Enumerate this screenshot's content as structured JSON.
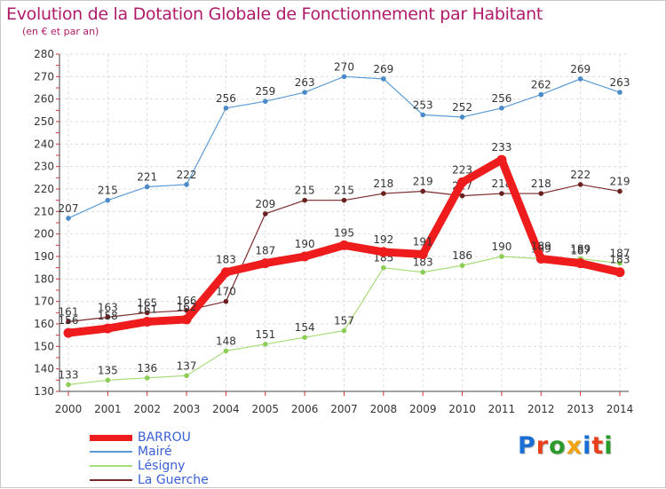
{
  "title": "Evolution de la Dotation Globale de Fonctionnement par Habitant",
  "subtitle": "(en € et par an)",
  "logo": {
    "text": "Proxiti",
    "colors": [
      "#1a6fd6",
      "#e8401c",
      "#2a9b2a",
      "#f2a20c",
      "#1a6fd6",
      "#e8401c",
      "#2a9b2a"
    ]
  },
  "chart_data": {
    "type": "line",
    "title": "Evolution de la Dotation Globale de Fonctionnement par Habitant",
    "subtitle": "(en € et par an)",
    "xlabel": "",
    "ylabel": "",
    "ylim": [
      130,
      280
    ],
    "yticks": [
      130,
      140,
      150,
      160,
      170,
      180,
      190,
      200,
      210,
      220,
      230,
      240,
      250,
      260,
      270,
      280
    ],
    "grid": true,
    "categories": [
      "2000",
      "2001",
      "2002",
      "2003",
      "2004",
      "2005",
      "2006",
      "2007",
      "2008",
      "2009",
      "2010",
      "2011",
      "2012",
      "2013",
      "2014"
    ],
    "series": [
      {
        "name": "Mairé",
        "color": "#5b9bd5",
        "width": 1.2,
        "dot": 2.8,
        "dotColor": "#4a8ac8",
        "values": [
          207,
          215,
          221,
          222,
          256,
          259,
          263,
          270,
          269,
          253,
          252,
          256,
          262,
          269,
          263
        ],
        "labels": [
          "207",
          "215",
          "221",
          "222",
          "256",
          "259",
          "263",
          "270",
          "269",
          "253",
          "252",
          "256",
          "262",
          "269",
          "263"
        ]
      },
      {
        "name": "Lésigny",
        "color": "#a8dc78",
        "width": 1.2,
        "dot": 2.8,
        "dotColor": "#8ccd55",
        "values": [
          133,
          135,
          136,
          137,
          148,
          151,
          154,
          157,
          185,
          183,
          186,
          190,
          189,
          189,
          187
        ],
        "labels": [
          "133",
          "135",
          "136",
          "137",
          "148",
          "151",
          "154",
          "157",
          "185",
          "183",
          "186",
          "190",
          "189",
          "189",
          "187"
        ]
      },
      {
        "name": "La Guerche",
        "color": "#7b2a2a",
        "width": 1.2,
        "dot": 2.8,
        "dotColor": "#6b2020",
        "values": [
          161,
          163,
          165,
          166,
          170,
          209,
          215,
          215,
          218,
          219,
          217,
          218,
          218,
          222,
          219
        ],
        "labels": [
          "161",
          "163",
          "165",
          "166",
          "170",
          "209",
          "215",
          "215",
          "218",
          "219",
          "217",
          "218",
          "218",
          "222",
          "219"
        ]
      },
      {
        "name": "BARROU",
        "color": "#ee1c1c",
        "width": 9,
        "dot": 5.5,
        "dotColor": "#ee1c1c",
        "values": [
          156,
          158,
          161,
          162,
          183,
          187,
          190,
          195,
          192,
          191,
          223,
          233,
          189,
          187,
          183
        ],
        "labels": [
          "156",
          "158",
          "161",
          "162",
          "183",
          "187",
          "190",
          "195",
          "192",
          "191",
          "223",
          "233",
          "189",
          "187",
          "183"
        ]
      }
    ],
    "legend": {
      "placement": "bottom-left",
      "items": [
        {
          "label": "BARROU",
          "color": "#ee1c1c",
          "thick": true
        },
        {
          "label": "Mairé",
          "color": "#5b9bd5",
          "thick": false
        },
        {
          "label": "Lésigny",
          "color": "#a8dc78",
          "thick": false
        },
        {
          "label": "La Guerche",
          "color": "#7b2a2a",
          "thick": false
        }
      ]
    }
  }
}
